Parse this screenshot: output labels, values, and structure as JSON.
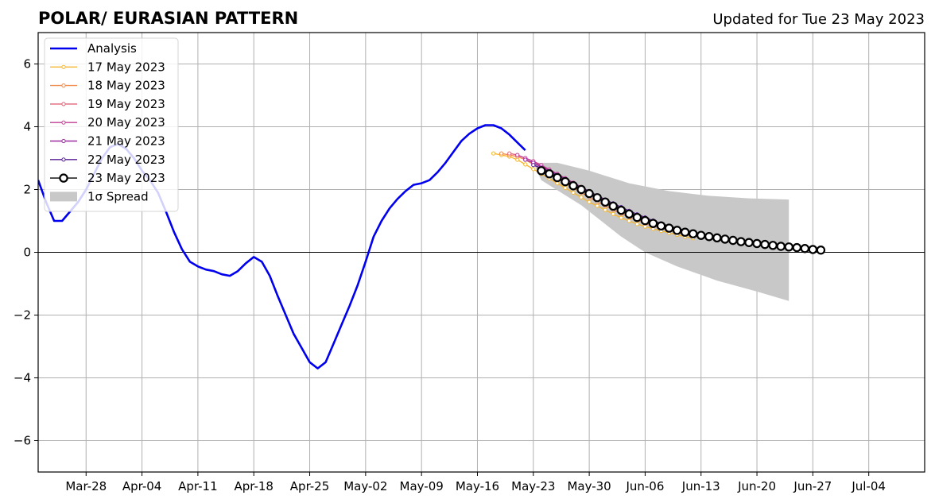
{
  "chart_data": {
    "type": "line",
    "title": "POLAR/ EURASIAN  PATTERN",
    "subtitle": "Updated for Tue 23 May 2023",
    "xlabel": "",
    "ylabel": "",
    "x_range": [
      "2023-03-22",
      "2023-07-11"
    ],
    "ylim": [
      -7,
      7
    ],
    "grid": true,
    "legend_position": "top-left",
    "x_ticks": [
      {
        "date": "2023-03-28",
        "label": "Mar-28"
      },
      {
        "date": "2023-04-04",
        "label": "Apr-04"
      },
      {
        "date": "2023-04-11",
        "label": "Apr-11"
      },
      {
        "date": "2023-04-18",
        "label": "Apr-18"
      },
      {
        "date": "2023-04-25",
        "label": "Apr-25"
      },
      {
        "date": "2023-05-02",
        "label": "May-02"
      },
      {
        "date": "2023-05-09",
        "label": "May-09"
      },
      {
        "date": "2023-05-16",
        "label": "May-16"
      },
      {
        "date": "2023-05-23",
        "label": "May-23"
      },
      {
        "date": "2023-05-30",
        "label": "May-30"
      },
      {
        "date": "2023-06-06",
        "label": "Jun-06"
      },
      {
        "date": "2023-06-13",
        "label": "Jun-13"
      },
      {
        "date": "2023-06-20",
        "label": "Jun-20"
      },
      {
        "date": "2023-06-27",
        "label": "Jun-27"
      },
      {
        "date": "2023-07-04",
        "label": "Jul-04"
      }
    ],
    "y_ticks": [
      {
        "value": -6,
        "label": "−6"
      },
      {
        "value": -4,
        "label": "−4"
      },
      {
        "value": -2,
        "label": "−2"
      },
      {
        "value": 0,
        "label": "0"
      },
      {
        "value": 2,
        "label": "2"
      },
      {
        "value": 4,
        "label": "4"
      },
      {
        "value": 6,
        "label": "6"
      }
    ],
    "legend": [
      {
        "label": "Analysis",
        "kind": "line",
        "color": "#0000ee"
      },
      {
        "label": "17 May 2023",
        "kind": "dotline",
        "color": "#f5b731"
      },
      {
        "label": "18 May 2023",
        "kind": "dotline",
        "color": "#ef8a4a"
      },
      {
        "label": "19 May 2023",
        "kind": "dotline",
        "color": "#e06478"
      },
      {
        "label": "20 May 2023",
        "kind": "dotline",
        "color": "#c03f94"
      },
      {
        "label": "21 May 2023",
        "kind": "dotline",
        "color": "#9a2aa0"
      },
      {
        "label": "22 May 2023",
        "kind": "dotline",
        "color": "#5a1f96"
      },
      {
        "label": "23 May 2023",
        "kind": "circle",
        "color": "#000000"
      },
      {
        "label": "1σ Spread",
        "kind": "patch",
        "color": "#c8c8c8"
      }
    ],
    "analysis": {
      "name": "Analysis",
      "color": "#0000ee",
      "start_date": "2023-03-22",
      "values": [
        2.3,
        1.6,
        1.0,
        1.0,
        1.3,
        1.6,
        2.0,
        2.5,
        3.0,
        3.35,
        3.45,
        3.3,
        3.0,
        2.6,
        2.3,
        1.9,
        1.3,
        0.65,
        0.1,
        -0.3,
        -0.45,
        -0.55,
        -0.6,
        -0.7,
        -0.75,
        -0.6,
        -0.35,
        -0.15,
        -0.3,
        -0.75,
        -1.4,
        -2.0,
        -2.6,
        -3.05,
        -3.5,
        -3.7,
        -3.5,
        -2.9,
        -2.3,
        -1.7,
        -1.05,
        -0.3,
        0.5,
        1.0,
        1.4,
        1.7,
        1.95,
        2.15,
        2.2,
        2.3,
        2.55,
        2.85,
        3.2,
        3.55,
        3.78,
        3.95,
        4.05,
        4.05,
        3.95,
        3.75,
        3.5,
        3.25
      ]
    },
    "forecasts": [
      {
        "name": "17 May 2023",
        "color": "#f5b731",
        "start_date": "2023-05-18",
        "values": [
          3.15,
          3.1,
          3.05,
          2.95,
          2.8,
          2.65,
          2.5,
          2.35,
          2.2,
          2.05,
          1.9,
          1.75,
          1.6,
          1.48,
          1.35,
          1.22,
          1.1,
          1.0,
          0.9,
          0.82,
          0.75,
          0.68,
          0.62,
          0.56,
          0.5,
          0.45
        ]
      },
      {
        "name": "18 May 2023",
        "color": "#ef8a4a",
        "start_date": "2023-05-19",
        "values": [
          3.15,
          3.1,
          3.05,
          2.95,
          2.8,
          2.65,
          2.5,
          2.35,
          2.2,
          2.05,
          1.9,
          1.75,
          1.6,
          1.48,
          1.35,
          1.23,
          1.12,
          1.02,
          0.92,
          0.83,
          0.76,
          0.69,
          0.63,
          0.57,
          0.52
        ]
      },
      {
        "name": "19 May 2023",
        "color": "#e06478",
        "start_date": "2023-05-20",
        "values": [
          3.15,
          3.1,
          3.0,
          2.9,
          2.75,
          2.6,
          2.45,
          2.3,
          2.15,
          2.0,
          1.85,
          1.7,
          1.56,
          1.43,
          1.3,
          1.18,
          1.07,
          0.97,
          0.88,
          0.8,
          0.73,
          0.66,
          0.6,
          0.55
        ]
      },
      {
        "name": "20 May 2023",
        "color": "#c03f94",
        "start_date": "2023-05-21",
        "values": [
          3.1,
          3.0,
          2.9,
          2.78,
          2.64,
          2.5,
          2.36,
          2.22,
          2.08,
          1.94,
          1.8,
          1.66,
          1.52,
          1.39,
          1.27,
          1.16,
          1.06,
          0.97,
          0.88,
          0.8,
          0.73,
          0.66,
          0.6
        ]
      },
      {
        "name": "21 May 2023",
        "color": "#9a2aa0",
        "start_date": "2023-05-22",
        "values": [
          2.95,
          2.85,
          2.72,
          2.6,
          2.47,
          2.34,
          2.2,
          2.06,
          1.92,
          1.78,
          1.65,
          1.52,
          1.4,
          1.28,
          1.17,
          1.07,
          0.98,
          0.89,
          0.81,
          0.74,
          0.68,
          0.62
        ]
      },
      {
        "name": "22 May 2023",
        "color": "#5a1f96",
        "start_date": "2023-05-23",
        "values": [
          2.78,
          2.68,
          2.57,
          2.45,
          2.33,
          2.2,
          2.07,
          1.94,
          1.81,
          1.68,
          1.56,
          1.44,
          1.32,
          1.21,
          1.11,
          1.01,
          0.92,
          0.84,
          0.77,
          0.7,
          0.64
        ]
      }
    ],
    "forecast_current": {
      "name": "23 May 2023",
      "start_date": "2023-05-24",
      "values": [
        2.6,
        2.5,
        2.38,
        2.25,
        2.12,
        2.0,
        1.87,
        1.74,
        1.6,
        1.47,
        1.34,
        1.22,
        1.11,
        1.01,
        0.92,
        0.84,
        0.77,
        0.7,
        0.64,
        0.59,
        0.54,
        0.5,
        0.46,
        0.42,
        0.38,
        0.34,
        0.31,
        0.28,
        0.25,
        0.22,
        0.19,
        0.17,
        0.15,
        0.12,
        0.09,
        0.07
      ]
    },
    "spread": {
      "name": "1σ Spread",
      "start_date": "2023-05-23",
      "end_date": "2023-06-24",
      "upper": [
        {
          "date": "2023-05-23",
          "value": 2.85
        },
        {
          "date": "2023-05-26",
          "value": 2.85
        },
        {
          "date": "2023-05-30",
          "value": 2.6
        },
        {
          "date": "2023-06-04",
          "value": 2.2
        },
        {
          "date": "2023-06-09",
          "value": 1.95
        },
        {
          "date": "2023-06-14",
          "value": 1.8
        },
        {
          "date": "2023-06-19",
          "value": 1.72
        },
        {
          "date": "2023-06-24",
          "value": 1.68
        }
      ],
      "lower": [
        {
          "date": "2023-05-23",
          "value": 2.85
        },
        {
          "date": "2023-05-24",
          "value": 2.3
        },
        {
          "date": "2023-05-29",
          "value": 1.5
        },
        {
          "date": "2023-06-03",
          "value": 0.5
        },
        {
          "date": "2023-06-06",
          "value": 0.0
        },
        {
          "date": "2023-06-10",
          "value": -0.45
        },
        {
          "date": "2023-06-15",
          "value": -0.9
        },
        {
          "date": "2023-06-20",
          "value": -1.25
        },
        {
          "date": "2023-06-24",
          "value": -1.55
        }
      ]
    }
  }
}
